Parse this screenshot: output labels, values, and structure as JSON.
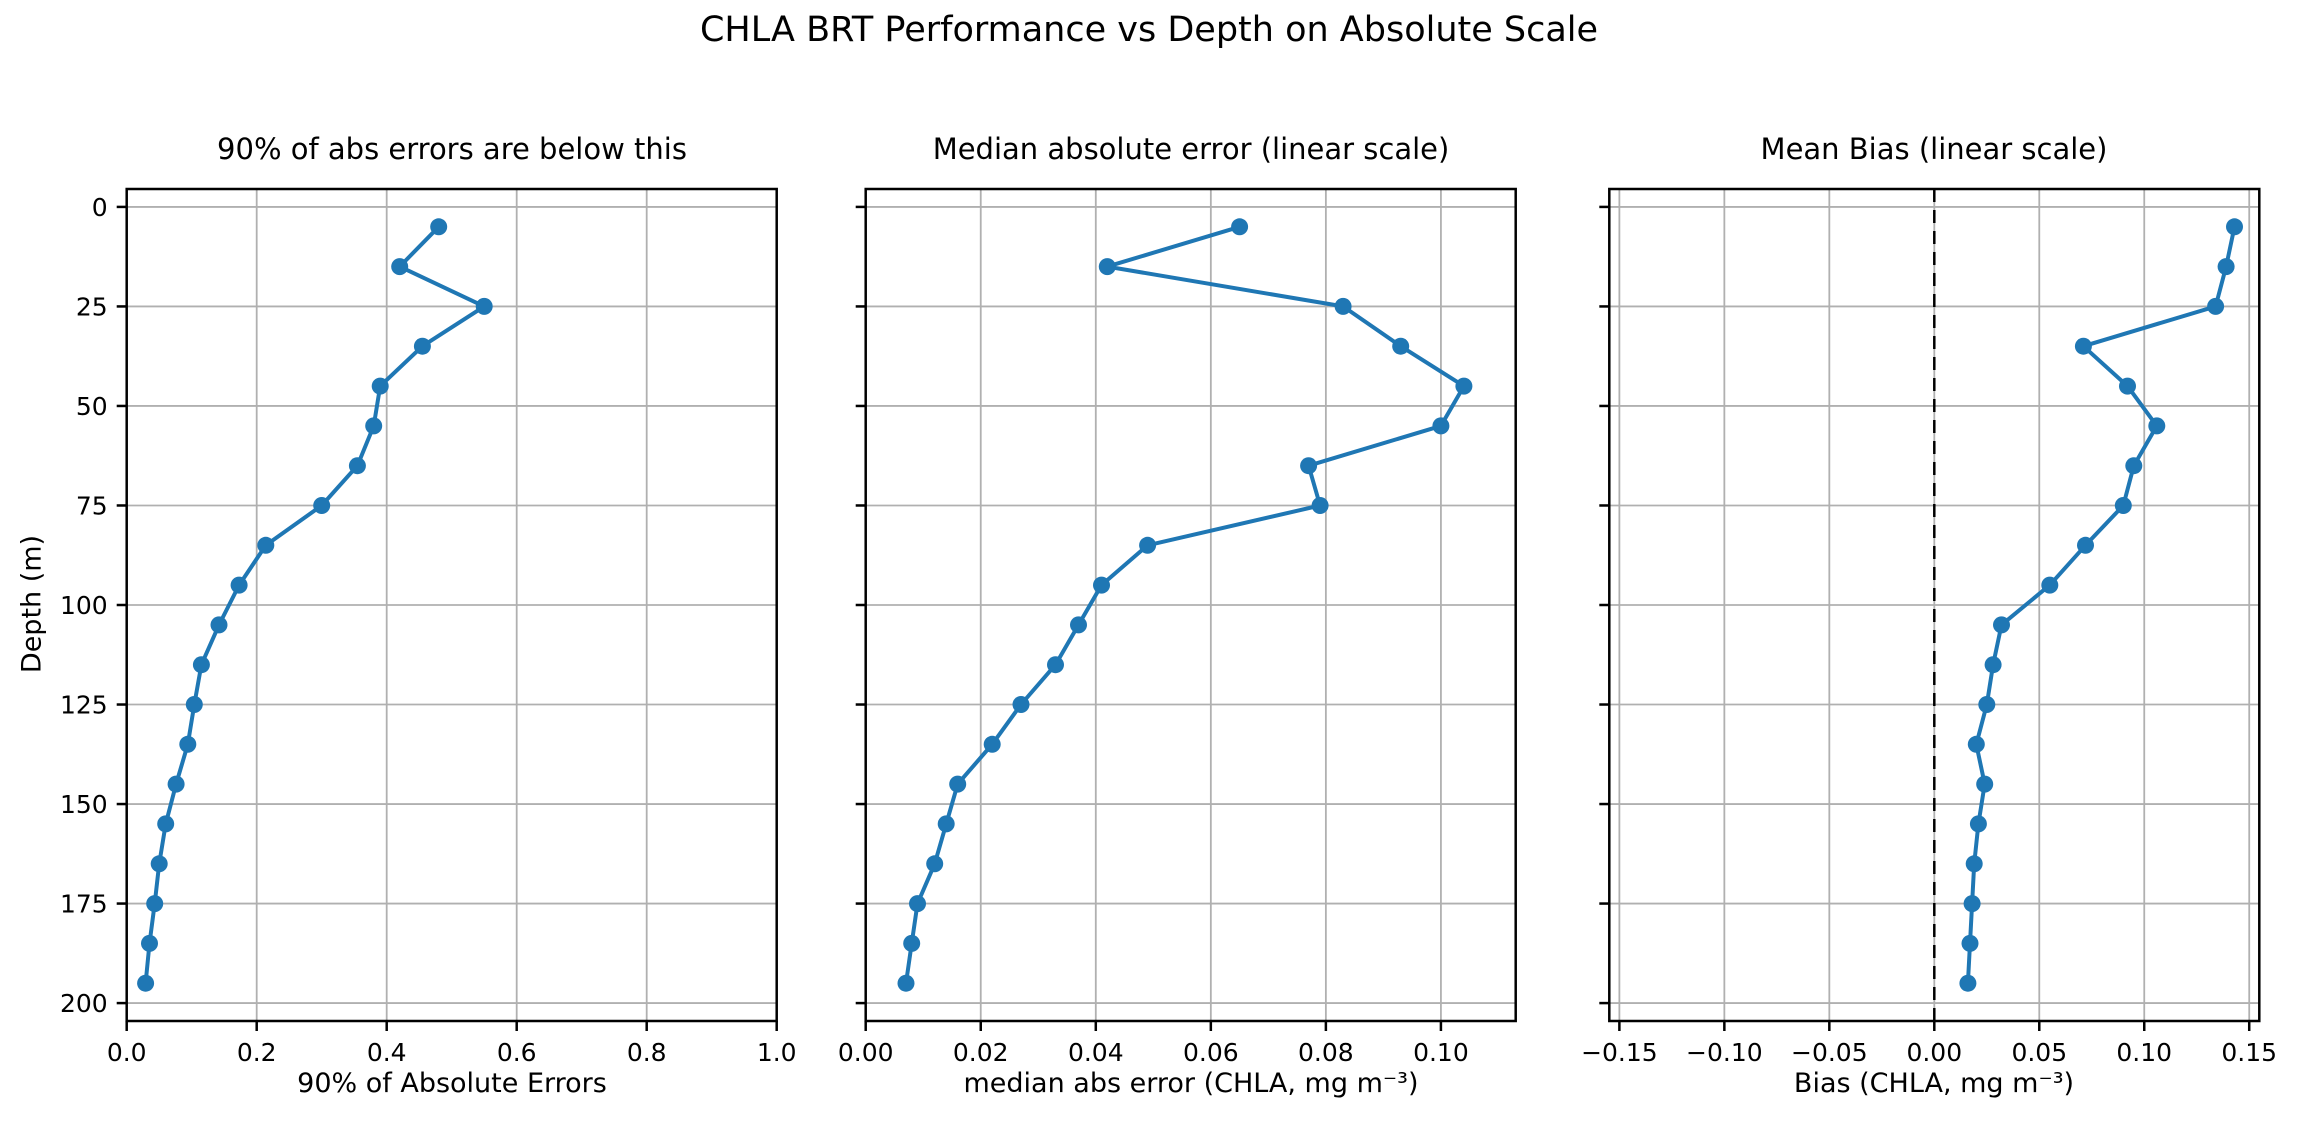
{
  "figure": {
    "title": "CHLA BRT Performance vs Depth on Absolute Scale"
  },
  "chart_data": {
    "type": "line",
    "title": "CHLA BRT Performance vs Depth on Absolute Scale",
    "ylabel": "Depth (m)",
    "y_inverted": true,
    "grid": true,
    "ylim": [
      -4.5,
      204.5
    ],
    "yticks": [
      0,
      25,
      50,
      75,
      100,
      125,
      150,
      175,
      200
    ],
    "depths": [
      5,
      15,
      25,
      35,
      45,
      55,
      65,
      75,
      85,
      95,
      105,
      115,
      125,
      135,
      145,
      155,
      165,
      175,
      185,
      195
    ],
    "line_color": "#1f77b4",
    "grid_color": "#b0b0b0",
    "marker": "circle",
    "panels": [
      {
        "title": "90% of abs errors are below this",
        "xlabel": "90% of Absolute Errors",
        "xlim": [
          0,
          1.0
        ],
        "xtick_values": [
          0.0,
          0.2,
          0.4,
          0.6,
          0.8,
          1.0
        ],
        "xtick_labels": [
          "0.0",
          "0.2",
          "0.4",
          "0.6",
          "0.8",
          "1.0"
        ],
        "zero_line": false,
        "series_name": "90th percentile of absolute error",
        "values": [
          0.48,
          0.42,
          0.55,
          0.455,
          0.39,
          0.38,
          0.355,
          0.3,
          0.214,
          0.173,
          0.142,
          0.115,
          0.104,
          0.094,
          0.076,
          0.06,
          0.05,
          0.043,
          0.035,
          0.029
        ]
      },
      {
        "title": "Median absolute error (linear scale)",
        "xlabel": "median abs error (CHLA, mg m⁻³)",
        "xlim": [
          0,
          0.113
        ],
        "xtick_values": [
          0.0,
          0.02,
          0.04,
          0.06,
          0.08,
          0.1
        ],
        "xtick_labels": [
          "0.00",
          "0.02",
          "0.04",
          "0.06",
          "0.08",
          "0.10"
        ],
        "zero_line": false,
        "series_name": "median absolute error",
        "values": [
          0.065,
          0.042,
          0.083,
          0.093,
          0.104,
          0.1,
          0.077,
          0.079,
          0.049,
          0.041,
          0.037,
          0.033,
          0.027,
          0.022,
          0.016,
          0.014,
          0.012,
          0.009,
          0.008,
          0.007
        ]
      },
      {
        "title": "Mean Bias (linear scale)",
        "xlabel": "Bias (CHLA, mg m⁻³)",
        "xlim": [
          -0.1548,
          0.1548
        ],
        "xtick_values": [
          -0.15,
          -0.1,
          -0.05,
          0.0,
          0.05,
          0.1,
          0.15
        ],
        "xtick_labels": [
          "−0.15",
          "−0.10",
          "−0.05",
          "0.00",
          "0.05",
          "0.10",
          "0.15"
        ],
        "zero_line": true,
        "series_name": "mean bias",
        "values": [
          0.143,
          0.139,
          0.134,
          0.071,
          0.092,
          0.106,
          0.095,
          0.09,
          0.072,
          0.055,
          0.032,
          0.028,
          0.025,
          0.02,
          0.024,
          0.021,
          0.019,
          0.018,
          0.017,
          0.016
        ]
      }
    ]
  }
}
